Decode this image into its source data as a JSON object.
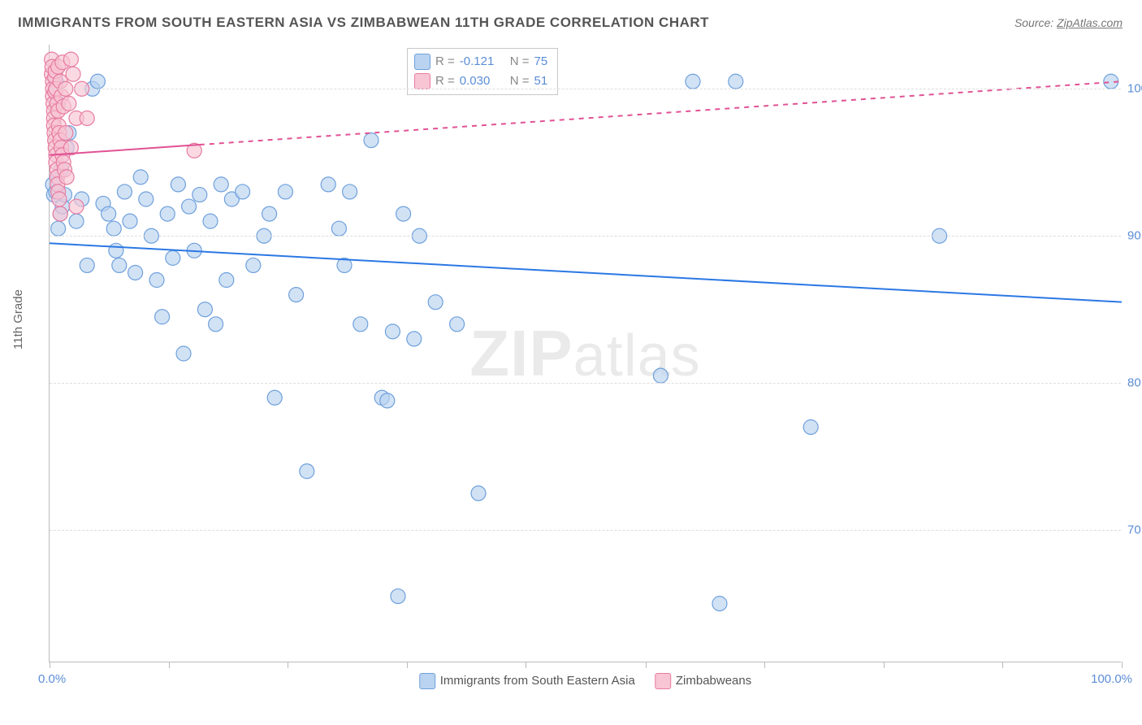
{
  "title": "IMMIGRANTS FROM SOUTH EASTERN ASIA VS ZIMBABWEAN 11TH GRADE CORRELATION CHART",
  "source_label": "Source:",
  "source_site": "ZipAtlas.com",
  "watermark": {
    "zip": "ZIP",
    "atlas": "atlas"
  },
  "ylabel": "11th Grade",
  "chart": {
    "type": "scatter",
    "xlim": [
      0,
      100
    ],
    "ylim": [
      61,
      103
    ],
    "x_ticks": [
      0,
      11.1,
      22.2,
      33.3,
      44.4,
      55.6,
      66.7,
      77.8,
      88.9,
      100
    ],
    "x_tick_labels": {
      "0": "0.0%",
      "100": "100.0%"
    },
    "y_grid": [
      70,
      80,
      90,
      100
    ],
    "y_tick_labels": [
      "70.0%",
      "80.0%",
      "90.0%",
      "100.0%"
    ],
    "background_color": "#ffffff",
    "grid_color": "#dddddd",
    "axis_color": "#bbbbbb",
    "series": [
      {
        "name": "Immigrants from South Eastern Asia",
        "color_fill": "#b9d3f0",
        "color_stroke": "#6fa0dc",
        "marker_radius": 9,
        "fill_opacity": 0.65,
        "R": "-0.121",
        "N": "75",
        "trend": {
          "x1": 0,
          "y1": 89.5,
          "x2": 100,
          "y2": 85.5,
          "color": "#2b78e4",
          "width": 2,
          "dash": "none"
        },
        "points": [
          [
            0.3,
            93.5
          ],
          [
            0.4,
            92.8
          ],
          [
            0.6,
            93.0
          ],
          [
            0.7,
            94.0
          ],
          [
            0.6,
            100.5
          ],
          [
            0.8,
            99.0
          ],
          [
            0.8,
            90.5
          ],
          [
            1.0,
            91.5
          ],
          [
            1.1,
            94.5
          ],
          [
            1.2,
            92.0
          ],
          [
            1.4,
            92.8
          ],
          [
            1.6,
            96.0
          ],
          [
            1.8,
            97.0
          ],
          [
            2.5,
            91.0
          ],
          [
            3.0,
            92.5
          ],
          [
            3.5,
            88.0
          ],
          [
            4.0,
            100.0
          ],
          [
            4.5,
            100.5
          ],
          [
            5.0,
            92.2
          ],
          [
            5.5,
            91.5
          ],
          [
            6.0,
            90.5
          ],
          [
            6.2,
            89.0
          ],
          [
            6.5,
            88.0
          ],
          [
            7.0,
            93.0
          ],
          [
            7.5,
            91.0
          ],
          [
            8.0,
            87.5
          ],
          [
            8.5,
            94.0
          ],
          [
            9.0,
            92.5
          ],
          [
            9.5,
            90.0
          ],
          [
            10.0,
            87.0
          ],
          [
            10.5,
            84.5
          ],
          [
            11.0,
            91.5
          ],
          [
            11.5,
            88.5
          ],
          [
            12.0,
            93.5
          ],
          [
            12.5,
            82.0
          ],
          [
            13.0,
            92.0
          ],
          [
            13.5,
            89.0
          ],
          [
            14.0,
            92.8
          ],
          [
            14.5,
            85.0
          ],
          [
            15.0,
            91.0
          ],
          [
            15.5,
            84.0
          ],
          [
            16.0,
            93.5
          ],
          [
            16.5,
            87.0
          ],
          [
            17.0,
            92.5
          ],
          [
            18.0,
            93.0
          ],
          [
            19.0,
            88.0
          ],
          [
            20.0,
            90.0
          ],
          [
            20.5,
            91.5
          ],
          [
            21.0,
            79.0
          ],
          [
            22.0,
            93.0
          ],
          [
            23.0,
            86.0
          ],
          [
            24.0,
            74.0
          ],
          [
            26.0,
            93.5
          ],
          [
            27.0,
            90.5
          ],
          [
            27.5,
            88.0
          ],
          [
            28.0,
            93.0
          ],
          [
            29.0,
            84.0
          ],
          [
            30.0,
            96.5
          ],
          [
            31.0,
            79.0
          ],
          [
            31.5,
            78.8
          ],
          [
            32.0,
            83.5
          ],
          [
            32.5,
            65.5
          ],
          [
            33.0,
            91.5
          ],
          [
            34.0,
            83.0
          ],
          [
            34.5,
            90.0
          ],
          [
            36.0,
            85.5
          ],
          [
            38.0,
            84.0
          ],
          [
            40.0,
            72.5
          ],
          [
            57.0,
            80.5
          ],
          [
            60.0,
            100.5
          ],
          [
            62.5,
            65.0
          ],
          [
            64.0,
            100.5
          ],
          [
            71.0,
            77.0
          ],
          [
            83.0,
            90.0
          ],
          [
            99.0,
            100.5
          ]
        ]
      },
      {
        "name": "Zimbabweans",
        "color_fill": "#f7c5d4",
        "color_stroke": "#e77ca1",
        "marker_radius": 9,
        "fill_opacity": 0.65,
        "R": "0.030",
        "N": "51",
        "trend": {
          "x1": 0,
          "y1": 95.5,
          "x2": 100,
          "y2": 100.5,
          "solid_until_x": 14,
          "color": "#e15294",
          "width": 2
        },
        "points": [
          [
            0.2,
            102.0
          ],
          [
            0.2,
            101.0
          ],
          [
            0.3,
            100.5
          ],
          [
            0.25,
            101.5
          ],
          [
            0.3,
            100.0
          ],
          [
            0.3,
            99.5
          ],
          [
            0.35,
            99.0
          ],
          [
            0.4,
            98.5
          ],
          [
            0.4,
            98.0
          ],
          [
            0.4,
            97.5
          ],
          [
            0.45,
            97.0
          ],
          [
            0.5,
            96.5
          ],
          [
            0.5,
            100.8
          ],
          [
            0.5,
            99.8
          ],
          [
            0.55,
            96.0
          ],
          [
            0.55,
            101.2
          ],
          [
            0.6,
            95.5
          ],
          [
            0.6,
            95.0
          ],
          [
            0.6,
            100.0
          ],
          [
            0.7,
            94.5
          ],
          [
            0.7,
            94.0
          ],
          [
            0.7,
            99.0
          ],
          [
            0.75,
            93.5
          ],
          [
            0.8,
            93.0
          ],
          [
            0.8,
            98.5
          ],
          [
            0.8,
            101.5
          ],
          [
            0.85,
            97.5
          ],
          [
            0.9,
            92.5
          ],
          [
            0.9,
            97.0
          ],
          [
            1.0,
            96.5
          ],
          [
            1.0,
            100.5
          ],
          [
            1.0,
            91.5
          ],
          [
            1.1,
            96.0
          ],
          [
            1.1,
            99.5
          ],
          [
            1.2,
            95.5
          ],
          [
            1.2,
            101.8
          ],
          [
            1.3,
            95.0
          ],
          [
            1.3,
            98.8
          ],
          [
            1.4,
            94.5
          ],
          [
            1.5,
            100.0
          ],
          [
            1.5,
            97.0
          ],
          [
            1.6,
            94.0
          ],
          [
            1.8,
            99.0
          ],
          [
            2.0,
            102.0
          ],
          [
            2.0,
            96.0
          ],
          [
            2.2,
            101.0
          ],
          [
            2.5,
            98.0
          ],
          [
            2.5,
            92.0
          ],
          [
            3.0,
            100.0
          ],
          [
            3.5,
            98.0
          ],
          [
            13.5,
            95.8
          ]
        ]
      }
    ]
  },
  "legend": {
    "r_label": "R  =",
    "n_label": "N  ="
  },
  "bottom_legend": {
    "series1": "Immigrants from South Eastern Asia",
    "series2": "Zimbabweans"
  }
}
